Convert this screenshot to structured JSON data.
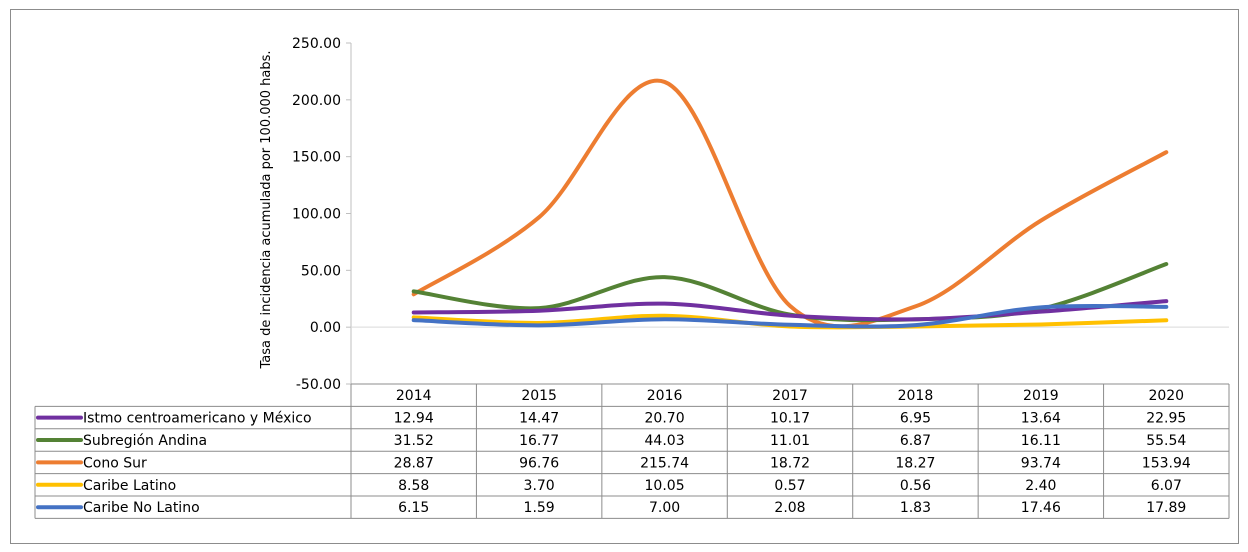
{
  "chart_data": {
    "type": "line",
    "title": "",
    "xlabel": "",
    "ylabel": "Tasa de incidencia acumulada por 100.000 habs.",
    "ylim": [
      -50,
      250
    ],
    "yticks": [
      -50,
      0,
      50,
      100,
      150,
      200,
      250
    ],
    "ytick_labels": [
      "-50.00",
      "0.00",
      "50.00",
      "100.00",
      "150.00",
      "200.00",
      "250.00"
    ],
    "categories": [
      "2014",
      "2015",
      "2016",
      "2017",
      "2018",
      "2019",
      "2020"
    ],
    "grid": "horizontal line at zero only",
    "legend": "data table below chart",
    "series": [
      {
        "name": "Istmo centroamericano y México",
        "color": "#7030a0",
        "values": [
          12.94,
          14.47,
          20.7,
          10.17,
          6.95,
          13.64,
          22.95
        ],
        "labels": [
          "12.94",
          "14.47",
          "20.70",
          "10.17",
          "6.95",
          "13.64",
          "22.95"
        ]
      },
      {
        "name": "Subregión Andina",
        "color": "#548235",
        "values": [
          31.52,
          16.77,
          44.03,
          11.01,
          6.87,
          16.11,
          55.54
        ],
        "labels": [
          "31.52",
          "16.77",
          "44.03",
          "11.01",
          "6.87",
          "16.11",
          "55.54"
        ]
      },
      {
        "name": "Cono Sur",
        "color": "#ed7d31",
        "values": [
          28.87,
          96.76,
          215.74,
          18.72,
          18.27,
          93.74,
          153.94
        ],
        "labels": [
          "28.87",
          "96.76",
          "215.74",
          "18.72",
          "18.27",
          "93.74",
          "153.94"
        ]
      },
      {
        "name": "Caribe Latino",
        "color": "#ffc000",
        "values": [
          8.58,
          3.7,
          10.05,
          0.57,
          0.56,
          2.4,
          6.07
        ],
        "labels": [
          "8.58",
          "3.70",
          "10.05",
          "0.57",
          "0.56",
          "2.40",
          "6.07"
        ]
      },
      {
        "name": "Caribe No Latino",
        "color": "#4472c4",
        "values": [
          6.15,
          1.59,
          7.0,
          2.08,
          1.83,
          17.46,
          17.89
        ],
        "labels": [
          "6.15",
          "1.59",
          "7.00",
          "2.08",
          "1.83",
          "17.46",
          "17.89"
        ]
      }
    ]
  }
}
